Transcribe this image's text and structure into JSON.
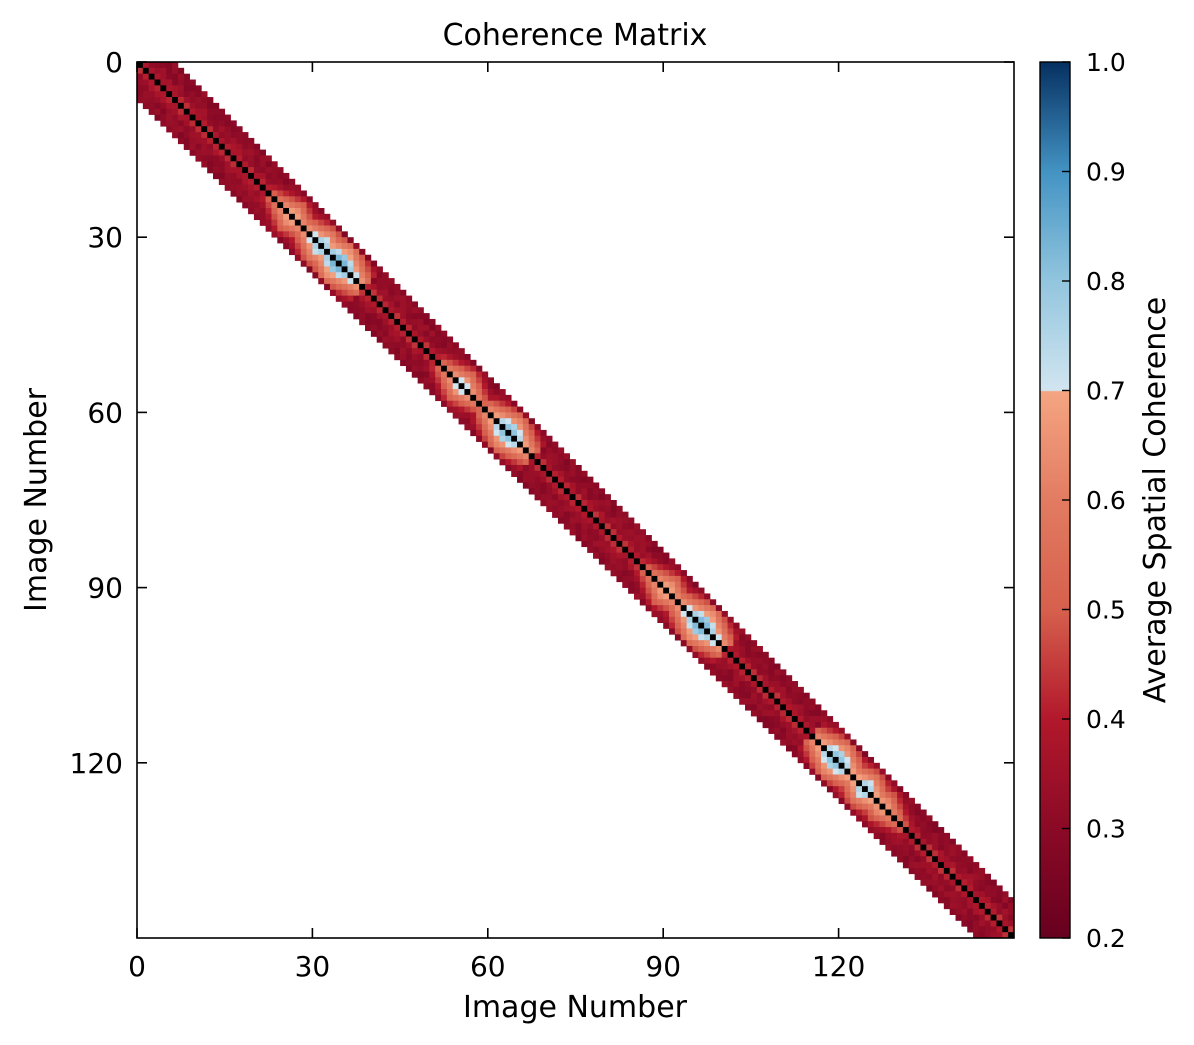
{
  "chart_data": {
    "type": "heatmap",
    "title": "Coherence Matrix",
    "xlabel": "Image Number",
    "ylabel": "Image Number",
    "n_images": 150,
    "xlim": [
      0,
      150
    ],
    "ylim": [
      150,
      0
    ],
    "x_ticks": [
      0,
      30,
      60,
      90,
      120
    ],
    "y_ticks": [
      0,
      30,
      60,
      90,
      120
    ],
    "band_half_width": 6,
    "grid": false,
    "colorbar": {
      "label": "Average Spatial Coherence",
      "vmin": 0.2,
      "vmax": 1.0,
      "ticks": [
        "0.2",
        "0.3",
        "0.4",
        "0.5",
        "0.6",
        "0.7",
        "0.8",
        "0.9",
        "1.0"
      ],
      "colors": [
        {
          "value": 0.2,
          "color": "#67001f"
        },
        {
          "value": 0.3,
          "color": "#8b0a26"
        },
        {
          "value": 0.4,
          "color": "#b2182b"
        },
        {
          "value": 0.5,
          "color": "#d6604d"
        },
        {
          "value": 0.6,
          "color": "#e27b62"
        },
        {
          "value": 0.699,
          "color": "#f4a582"
        },
        {
          "value": 0.7,
          "color": "#d1e5f0"
        },
        {
          "value": 0.8,
          "color": "#92c5de"
        },
        {
          "value": 0.9,
          "color": "#4393c3"
        },
        {
          "value": 1.0,
          "color": "#053061"
        }
      ]
    },
    "diagonal_value": 1.0,
    "high_coherence_centers": [
      {
        "image": 26,
        "peak": 0.78
      },
      {
        "image": 31,
        "peak": 0.86
      },
      {
        "image": 34,
        "peak": 0.93
      },
      {
        "image": 55,
        "peak": 0.8
      },
      {
        "image": 63,
        "peak": 0.9
      },
      {
        "image": 90,
        "peak": 0.78
      },
      {
        "image": 96,
        "peak": 0.92
      },
      {
        "image": 119,
        "peak": 0.9
      },
      {
        "image": 124,
        "peak": 0.85
      },
      {
        "image": 127,
        "peak": 0.76
      }
    ]
  }
}
